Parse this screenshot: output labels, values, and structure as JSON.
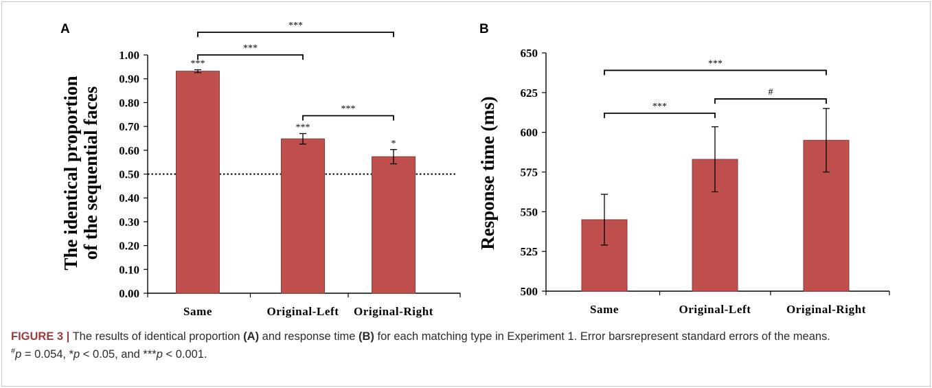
{
  "chart_data": [
    {
      "panel": "A",
      "type": "bar",
      "categories": [
        "Same",
        "Original-Left",
        "Original-Right"
      ],
      "values": [
        0.932,
        0.648,
        0.573
      ],
      "errors": [
        0.006,
        0.022,
        0.03
      ],
      "ylabel_lines": [
        "The identical proportion",
        "of the sequential faces"
      ],
      "xlabel": "",
      "ylim": [
        0,
        1
      ],
      "yticks": [
        "0.00",
        "0.10",
        "0.20",
        "0.30",
        "0.40",
        "0.50",
        "0.60",
        "0.70",
        "0.80",
        "0.90",
        "1.00"
      ],
      "reference_line": 0.5,
      "bar_labels": [
        "***",
        "***",
        "*"
      ],
      "comparisons": [
        {
          "from": 0,
          "to": 1,
          "label": "***",
          "level": 1.0
        },
        {
          "from": 0,
          "to": 2,
          "label": "***",
          "level": 1.095
        },
        {
          "from": 1,
          "to": 2,
          "label": "***",
          "level": 0.745
        }
      ],
      "bar_color": "#c0504d",
      "grid": false
    },
    {
      "panel": "B",
      "type": "bar",
      "categories": [
        "Same",
        "Original-Left",
        "Original-Right"
      ],
      "values": [
        545,
        583,
        595
      ],
      "errors": [
        16,
        20.5,
        20
      ],
      "ylabel_lines": [
        "Response time (ms)"
      ],
      "xlabel": "",
      "ylim": [
        500,
        650
      ],
      "yticks": [
        "500",
        "525",
        "550",
        "575",
        "600",
        "625",
        "650"
      ],
      "comparisons": [
        {
          "from": 0,
          "to": 1,
          "label": "***",
          "level": 612
        },
        {
          "from": 0,
          "to": 2,
          "label": "***",
          "level": 639
        },
        {
          "from": 1,
          "to": 2,
          "label": "#",
          "level": 621
        }
      ],
      "bar_color": "#c0504d",
      "grid": false
    }
  ],
  "caption": {
    "label": "FIGURE 3 |",
    "pre_a": "The results of identical proportion",
    "panel_a": "(A)",
    "mid": "and response time",
    "panel_b": "(B)",
    "post_b": "for each matching type in Experiment 1. Error barsrepresent standard errors of the means.",
    "hash_sup": "#",
    "p_var": "p",
    "hash_value": "= 0.054, *",
    "star_value": "< 0.05, and ***",
    "triple_value": "< 0.001."
  },
  "colors": {
    "bar": "#c0504d",
    "bar_edge": "#8b3a38",
    "caption_label": "#9e3a3a"
  }
}
